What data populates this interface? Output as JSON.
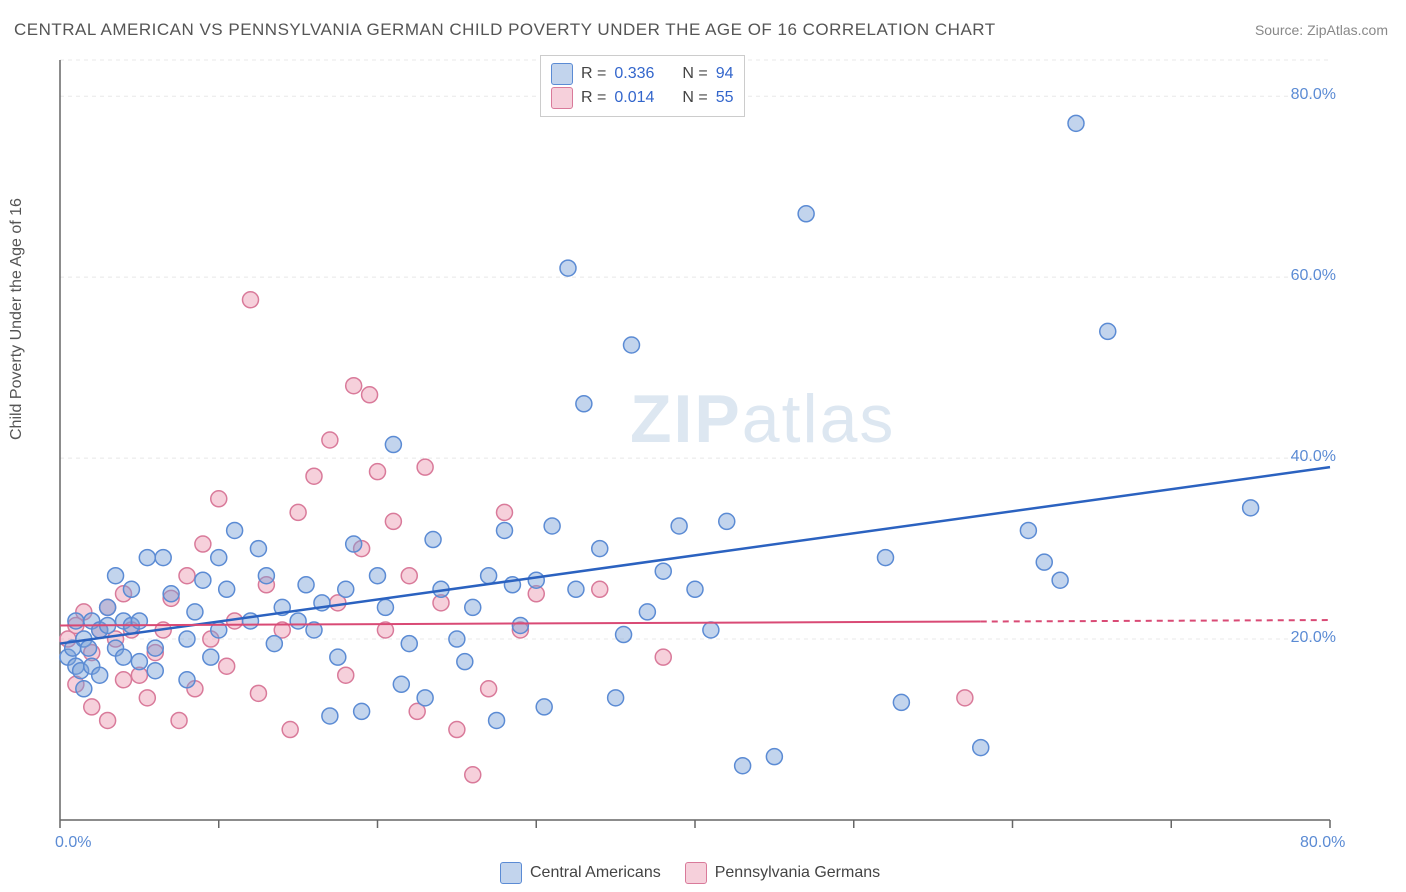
{
  "title": "CENTRAL AMERICAN VS PENNSYLVANIA GERMAN CHILD POVERTY UNDER THE AGE OF 16 CORRELATION CHART",
  "source_prefix": "Source: ",
  "source_name": "ZipAtlas.com",
  "y_axis_label": "Child Poverty Under the Age of 16",
  "watermark_bold": "ZIP",
  "watermark_light": "atlas",
  "chart": {
    "type": "scatter-correlation",
    "background_color": "#ffffff",
    "grid_color": "#e8e8e8",
    "axis_line_color": "#666666",
    "tick_color": "#666666",
    "tick_label_color": "#5b8bd4",
    "tick_label_fontsize": 16,
    "xlim": [
      0,
      80
    ],
    "ylim": [
      0,
      84
    ],
    "x_ticks": [
      0,
      10,
      20,
      30,
      40,
      50,
      60,
      70,
      80
    ],
    "y_grid": [
      20,
      40,
      60,
      80
    ],
    "x_tick_labels": {
      "0": "0.0%",
      "80": "80.0%"
    },
    "y_tick_labels": {
      "20": "20.0%",
      "40": "40.0%",
      "60": "60.0%",
      "80": "80.0%"
    },
    "marker_radius": 8,
    "marker_stroke_width": 1.5,
    "series": [
      {
        "name": "Central Americans",
        "fill": "rgba(120,160,215,0.45)",
        "stroke": "#5b8bd4",
        "trend": {
          "x1": 0,
          "y1": 19.5,
          "x2": 80,
          "y2": 39.0,
          "color": "#2b62c0",
          "width": 2.5,
          "solid_until_x": 80
        },
        "r_label": "R =",
        "r_value": "0.336",
        "n_label": "N =",
        "n_value": "94",
        "points": [
          [
            0.5,
            18
          ],
          [
            0.8,
            19
          ],
          [
            1,
            17
          ],
          [
            1,
            22
          ],
          [
            1.3,
            16.5
          ],
          [
            1.5,
            20
          ],
          [
            1.5,
            14.5
          ],
          [
            1.8,
            19
          ],
          [
            2,
            22
          ],
          [
            2,
            17
          ],
          [
            2.5,
            21
          ],
          [
            2.5,
            16
          ],
          [
            3,
            21.5
          ],
          [
            3,
            23.5
          ],
          [
            3.5,
            19
          ],
          [
            3.5,
            27
          ],
          [
            4,
            18
          ],
          [
            4,
            22
          ],
          [
            4.5,
            21.5
          ],
          [
            4.5,
            25.5
          ],
          [
            5,
            22
          ],
          [
            5,
            17.5
          ],
          [
            5.5,
            29
          ],
          [
            6,
            19
          ],
          [
            6,
            16.5
          ],
          [
            6.5,
            29
          ],
          [
            7,
            25
          ],
          [
            8,
            20
          ],
          [
            8,
            15.5
          ],
          [
            8.5,
            23
          ],
          [
            9,
            26.5
          ],
          [
            9.5,
            18
          ],
          [
            10,
            29
          ],
          [
            10,
            21
          ],
          [
            10.5,
            25.5
          ],
          [
            11,
            32
          ],
          [
            12,
            22
          ],
          [
            12.5,
            30
          ],
          [
            13,
            27
          ],
          [
            13.5,
            19.5
          ],
          [
            14,
            23.5
          ],
          [
            15,
            22
          ],
          [
            15.5,
            26
          ],
          [
            16,
            21
          ],
          [
            16.5,
            24
          ],
          [
            17,
            11.5
          ],
          [
            17.5,
            18
          ],
          [
            18,
            25.5
          ],
          [
            18.5,
            30.5
          ],
          [
            19,
            12
          ],
          [
            20,
            27
          ],
          [
            20.5,
            23.5
          ],
          [
            21,
            41.5
          ],
          [
            21.5,
            15
          ],
          [
            22,
            19.5
          ],
          [
            23,
            13.5
          ],
          [
            23.5,
            31
          ],
          [
            24,
            25.5
          ],
          [
            25,
            20
          ],
          [
            25.5,
            17.5
          ],
          [
            26,
            23.5
          ],
          [
            27,
            27
          ],
          [
            27.5,
            11
          ],
          [
            28,
            32
          ],
          [
            28.5,
            26
          ],
          [
            29,
            21.5
          ],
          [
            30,
            26.5
          ],
          [
            30.5,
            12.5
          ],
          [
            31,
            32.5
          ],
          [
            32,
            61
          ],
          [
            32.5,
            25.5
          ],
          [
            33,
            46
          ],
          [
            34,
            30
          ],
          [
            35,
            13.5
          ],
          [
            35.5,
            20.5
          ],
          [
            36,
            52.5
          ],
          [
            37,
            23
          ],
          [
            38,
            27.5
          ],
          [
            39,
            32.5
          ],
          [
            40,
            25.5
          ],
          [
            41,
            21
          ],
          [
            42,
            33
          ],
          [
            43,
            6
          ],
          [
            45,
            7
          ],
          [
            47,
            67
          ],
          [
            52,
            29
          ],
          [
            53,
            13
          ],
          [
            58,
            8
          ],
          [
            61,
            32
          ],
          [
            62,
            28.5
          ],
          [
            63,
            26.5
          ],
          [
            64,
            77
          ],
          [
            66,
            54
          ],
          [
            75,
            34.5
          ]
        ]
      },
      {
        "name": "Pennsylvania Germans",
        "fill": "rgba(235,150,175,0.45)",
        "stroke": "#d97a9a",
        "trend": {
          "x1": 0,
          "y1": 21.5,
          "x2": 80,
          "y2": 22.1,
          "color": "#d94a75",
          "width": 2,
          "solid_until_x": 58
        },
        "r_label": "R =",
        "r_value": "0.014",
        "n_label": "N =",
        "n_value": "55",
        "points": [
          [
            0.5,
            20
          ],
          [
            1,
            21.5
          ],
          [
            1,
            15
          ],
          [
            1.5,
            23
          ],
          [
            2,
            12.5
          ],
          [
            2,
            18.5
          ],
          [
            2.5,
            21
          ],
          [
            3,
            23.5
          ],
          [
            3,
            11
          ],
          [
            3.5,
            20
          ],
          [
            4,
            15.5
          ],
          [
            4,
            25
          ],
          [
            4.5,
            21
          ],
          [
            5,
            16
          ],
          [
            5.5,
            13.5
          ],
          [
            6,
            18.5
          ],
          [
            6.5,
            21
          ],
          [
            7,
            24.5
          ],
          [
            7.5,
            11
          ],
          [
            8,
            27
          ],
          [
            8.5,
            14.5
          ],
          [
            9,
            30.5
          ],
          [
            9.5,
            20
          ],
          [
            10,
            35.5
          ],
          [
            10.5,
            17
          ],
          [
            11,
            22
          ],
          [
            12,
            57.5
          ],
          [
            12.5,
            14
          ],
          [
            13,
            26
          ],
          [
            14,
            21
          ],
          [
            14.5,
            10
          ],
          [
            15,
            34
          ],
          [
            16,
            38
          ],
          [
            17,
            42
          ],
          [
            17.5,
            24
          ],
          [
            18,
            16
          ],
          [
            18.5,
            48
          ],
          [
            19,
            30
          ],
          [
            19.5,
            47
          ],
          [
            20,
            38.5
          ],
          [
            20.5,
            21
          ],
          [
            21,
            33
          ],
          [
            22,
            27
          ],
          [
            22.5,
            12
          ],
          [
            23,
            39
          ],
          [
            24,
            24
          ],
          [
            25,
            10
          ],
          [
            26,
            5
          ],
          [
            27,
            14.5
          ],
          [
            28,
            34
          ],
          [
            29,
            21
          ],
          [
            30,
            25
          ],
          [
            34,
            25.5
          ],
          [
            38,
            18
          ],
          [
            57,
            13.5
          ]
        ]
      }
    ]
  },
  "bottom_legend": [
    {
      "label": "Central Americans",
      "fill": "rgba(120,160,215,0.45)",
      "stroke": "#5b8bd4"
    },
    {
      "label": "Pennsylvania Germans",
      "fill": "rgba(235,150,175,0.45)",
      "stroke": "#d97a9a"
    }
  ]
}
